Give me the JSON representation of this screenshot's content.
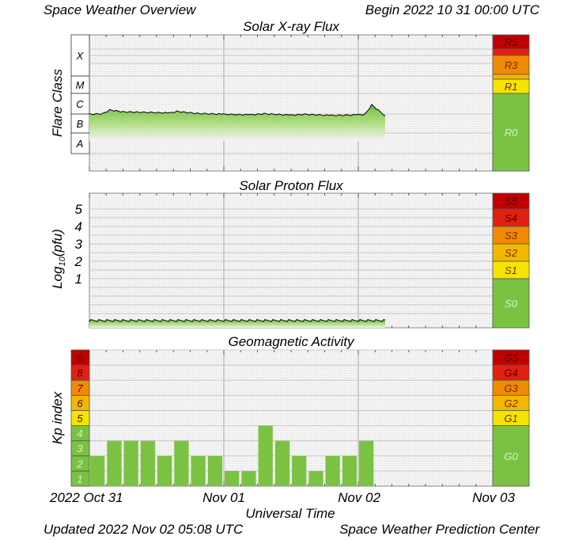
{
  "header": {
    "title": "Space Weather Overview",
    "begin": "Begin 2022 10 31 00:00 UTC"
  },
  "footer": {
    "updated": "Updated 2022 Nov 02 05:08 UTC",
    "center": "Space Weather Prediction Center"
  },
  "x_axis": {
    "label": "Universal Time",
    "ticks": [
      "2022 Oct 31",
      "Nov 01",
      "Nov 02",
      "Nov 03"
    ]
  },
  "colors": {
    "green": "#7cc242",
    "yellow": "#f5e400",
    "orange": "#f08a00",
    "red": "#e02010",
    "darkred": "#c00000",
    "grid": "#c8c8c8",
    "plot_bg": "#f3f3f3"
  },
  "chart_data": [
    {
      "type": "area",
      "title": "Solar X-ray Flux",
      "ylabel": "Flare Class",
      "y_scale": "log",
      "y_classes": [
        "X",
        "M",
        "C",
        "B",
        "A"
      ],
      "x_range_days": [
        0,
        3
      ],
      "scale_labels": [
        "R5",
        "R3",
        "R1",
        "R0"
      ],
      "series": [
        {
          "x": [
            0.0,
            0.1,
            0.15,
            0.25,
            0.4,
            0.6,
            0.65,
            0.8,
            1.0,
            1.2,
            1.3,
            1.5,
            1.6,
            1.8,
            2.0,
            2.05,
            2.1,
            2.2
          ],
          "values": [
            3e-07,
            3.2e-07,
            5e-07,
            4e-07,
            3.8e-07,
            3.5e-07,
            4.2e-07,
            3.3e-07,
            3e-07,
            2.8e-07,
            3.2e-07,
            2.7e-07,
            3e-07,
            2.6e-07,
            2.8e-07,
            3e-07,
            9e-07,
            2.5e-07
          ]
        }
      ]
    },
    {
      "type": "area",
      "title": "Solar Proton Flux",
      "ylabel": "Log10(pfu)",
      "y_ticks": [
        "5",
        "4",
        "3",
        "2",
        "1"
      ],
      "x_range_days": [
        0,
        3
      ],
      "scale_labels": [
        "S5",
        "S4",
        "S3",
        "S2",
        "S1",
        "S0"
      ],
      "series": [
        {
          "x": [
            0.0,
            0.5,
            1.0,
            1.5,
            2.0,
            2.2
          ],
          "values": [
            -1.4,
            -1.4,
            -1.4,
            -1.4,
            -1.4,
            -1.4
          ]
        }
      ]
    },
    {
      "type": "bar",
      "title": "Geomagnetic Activity",
      "ylabel": "Kp index",
      "y_ticks": [
        "9",
        "8",
        "7",
        "6",
        "5",
        "4",
        "3",
        "2",
        "1"
      ],
      "ylim": [
        0,
        9
      ],
      "bar_width_hours": 3,
      "values": [
        2,
        3,
        3,
        3,
        2,
        3,
        2,
        2,
        1,
        1,
        4,
        3,
        2,
        1,
        2,
        2,
        3
      ],
      "scale_labels": [
        "G5",
        "G4",
        "G3",
        "G2",
        "G1",
        "G0"
      ]
    }
  ]
}
